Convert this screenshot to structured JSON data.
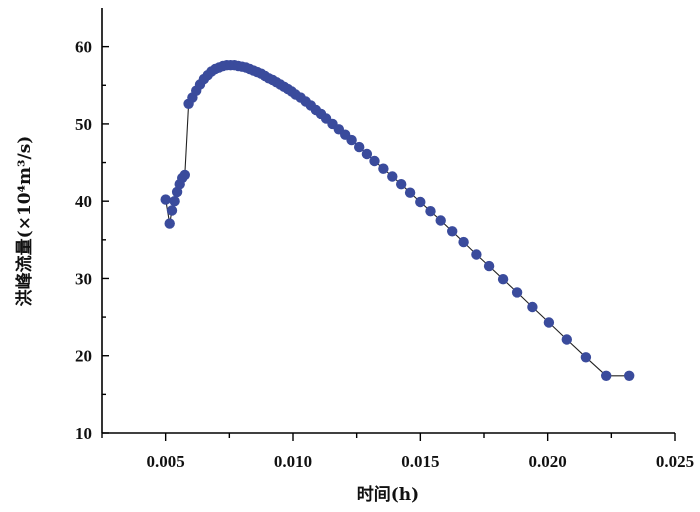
{
  "chart_data": {
    "type": "scatter",
    "xlabel": "时间(h)",
    "ylabel": "洪峰流量(×10⁴m³/s)",
    "xlim": [
      0.0025,
      0.025
    ],
    "ylim": [
      10,
      65
    ],
    "xticks": [
      "0.005",
      "0.010",
      "0.015",
      "0.020",
      "0.025"
    ],
    "yticks": [
      "10",
      "20",
      "30",
      "40",
      "50",
      "60"
    ],
    "grid": false,
    "series": [
      {
        "marker_color": "#3a4b9c",
        "line_color": "#222222",
        "points": [
          [
            0.005,
            40.2
          ],
          [
            0.00516,
            37.1
          ],
          [
            0.00525,
            38.8
          ],
          [
            0.00535,
            40.0
          ],
          [
            0.00545,
            41.2
          ],
          [
            0.00555,
            42.2
          ],
          [
            0.00565,
            43.0
          ],
          [
            0.00575,
            43.4
          ],
          [
            0.0059,
            52.6
          ],
          [
            0.00605,
            53.4
          ],
          [
            0.0062,
            54.3
          ],
          [
            0.00635,
            55.1
          ],
          [
            0.0065,
            55.8
          ],
          [
            0.00665,
            56.3
          ],
          [
            0.0068,
            56.8
          ],
          [
            0.00695,
            57.1
          ],
          [
            0.0071,
            57.3
          ],
          [
            0.00725,
            57.5
          ],
          [
            0.0074,
            57.6
          ],
          [
            0.00755,
            57.6
          ],
          [
            0.0077,
            57.6
          ],
          [
            0.00785,
            57.5
          ],
          [
            0.008,
            57.4
          ],
          [
            0.00815,
            57.3
          ],
          [
            0.0083,
            57.1
          ],
          [
            0.00845,
            56.9
          ],
          [
            0.0086,
            56.7
          ],
          [
            0.00875,
            56.5
          ],
          [
            0.0089,
            56.2
          ],
          [
            0.00905,
            55.9
          ],
          [
            0.0092,
            55.7
          ],
          [
            0.00935,
            55.4
          ],
          [
            0.0095,
            55.1
          ],
          [
            0.00965,
            54.8
          ],
          [
            0.0098,
            54.5
          ],
          [
            0.00995,
            54.2
          ],
          [
            0.0101,
            53.8
          ],
          [
            0.0103,
            53.4
          ],
          [
            0.0105,
            52.9
          ],
          [
            0.0107,
            52.4
          ],
          [
            0.0109,
            51.8
          ],
          [
            0.0111,
            51.3
          ],
          [
            0.0113,
            50.7
          ],
          [
            0.01155,
            50.0
          ],
          [
            0.0118,
            49.3
          ],
          [
            0.01205,
            48.6
          ],
          [
            0.0123,
            47.9
          ],
          [
            0.0126,
            47.0
          ],
          [
            0.0129,
            46.1
          ],
          [
            0.0132,
            45.2
          ],
          [
            0.01355,
            44.2
          ],
          [
            0.0139,
            43.2
          ],
          [
            0.01425,
            42.2
          ],
          [
            0.0146,
            41.1
          ],
          [
            0.015,
            39.9
          ],
          [
            0.0154,
            38.7
          ],
          [
            0.0158,
            37.5
          ],
          [
            0.01625,
            36.1
          ],
          [
            0.0167,
            34.7
          ],
          [
            0.0172,
            33.1
          ],
          [
            0.0177,
            31.6
          ],
          [
            0.01825,
            29.9
          ],
          [
            0.0188,
            28.2
          ],
          [
            0.0194,
            26.3
          ],
          [
            0.02005,
            24.3
          ],
          [
            0.02075,
            22.1
          ],
          [
            0.0215,
            19.8
          ],
          [
            0.0223,
            17.4
          ],
          [
            0.0232,
            17.4
          ]
        ]
      }
    ]
  }
}
